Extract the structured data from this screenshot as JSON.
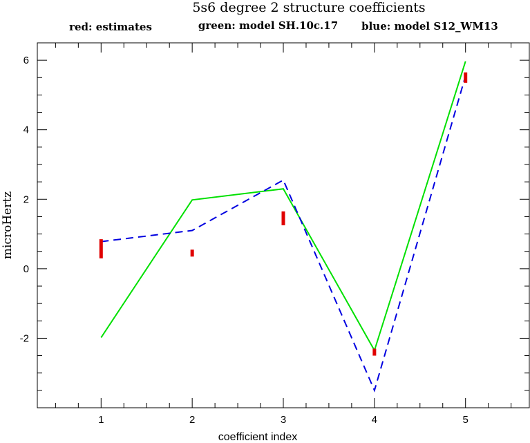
{
  "chart_data": {
    "type": "line",
    "title": "5s6 degree 2 structure coefficients",
    "xlabel": "coefficient index",
    "ylabel": "microHertz",
    "xlim": [
      0.3,
      5.7
    ],
    "ylim": [
      -4.0,
      6.5
    ],
    "x_ticks": [
      1,
      2,
      3,
      4,
      5
    ],
    "y_ticks": [
      -2,
      0,
      2,
      4,
      6
    ],
    "x_minor_step": 0.25,
    "y_minor_step": 0.5,
    "legend": {
      "placement": "top",
      "entries": [
        {
          "text": "red: estimates",
          "color": "#e00000"
        },
        {
          "text": "green: model SH.10c.17",
          "color": "#00e000"
        },
        {
          "text": "blue: model S12_WM13",
          "color": "#0000e0"
        }
      ]
    },
    "estimates": {
      "color": "#e00000",
      "x": [
        1,
        2,
        3,
        4,
        5
      ],
      "low": [
        0.3,
        0.35,
        1.25,
        -2.5,
        5.35
      ],
      "high": [
        0.85,
        0.55,
        1.65,
        -2.3,
        5.65
      ]
    },
    "series": [
      {
        "color": "#00e000",
        "style": "solid",
        "x": [
          1,
          2,
          3,
          4,
          5
        ],
        "values": [
          -1.98,
          1.98,
          2.3,
          -2.35,
          5.97
        ]
      },
      {
        "color": "#0000e0",
        "style": "dashed",
        "x": [
          1,
          2,
          3,
          4,
          5
        ],
        "values": [
          0.78,
          1.1,
          2.55,
          -3.5,
          5.55
        ]
      }
    ]
  }
}
